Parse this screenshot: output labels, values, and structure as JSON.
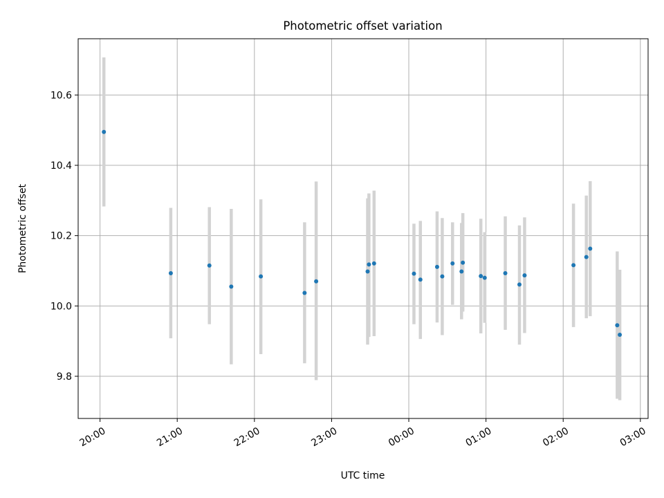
{
  "chart_data": {
    "type": "scatter",
    "title": "Photometric offset variation",
    "xlabel": "UTC time",
    "ylabel": "Photometric offset",
    "x_axis": {
      "kind": "time",
      "xlim": [
        "19:43",
        "03:06"
      ],
      "ticks": [
        "20:00",
        "21:00",
        "22:00",
        "23:00",
        "00:00",
        "01:00",
        "02:00",
        "03:00"
      ]
    },
    "ylim": [
      9.68,
      10.76
    ],
    "yticks": [
      9.8,
      10.0,
      10.2,
      10.4,
      10.6
    ],
    "grid": true,
    "colors": {
      "marker": "#1f77b4",
      "errorbar": "#d3d3d3",
      "grid": "#b0b0b0"
    },
    "points": [
      {
        "t": "20:03",
        "y": 10.495,
        "lo": 10.283,
        "hi": 10.707
      },
      {
        "t": "20:55",
        "y": 10.093,
        "lo": 9.908,
        "hi": 10.279
      },
      {
        "t": "21:25",
        "y": 10.115,
        "lo": 9.948,
        "hi": 10.281
      },
      {
        "t": "21:42",
        "y": 10.055,
        "lo": 9.834,
        "hi": 10.276
      },
      {
        "t": "22:05",
        "y": 10.084,
        "lo": 9.863,
        "hi": 10.303
      },
      {
        "t": "22:39",
        "y": 10.037,
        "lo": 9.837,
        "hi": 10.238
      },
      {
        "t": "22:48",
        "y": 10.07,
        "lo": 9.789,
        "hi": 10.354
      },
      {
        "t": "23:28",
        "y": 10.098,
        "lo": 9.89,
        "hi": 10.306
      },
      {
        "t": "23:29",
        "y": 10.118,
        "lo": 9.912,
        "hi": 10.32
      },
      {
        "t": "23:33",
        "y": 10.121,
        "lo": 9.914,
        "hi": 10.328
      },
      {
        "t": "00:04",
        "y": 10.092,
        "lo": 9.948,
        "hi": 10.234
      },
      {
        "t": "00:09",
        "y": 10.075,
        "lo": 9.906,
        "hi": 10.242
      },
      {
        "t": "00:22",
        "y": 10.111,
        "lo": 9.953,
        "hi": 10.269
      },
      {
        "t": "00:26",
        "y": 10.084,
        "lo": 9.917,
        "hi": 10.25
      },
      {
        "t": "00:34",
        "y": 10.121,
        "lo": 10.003,
        "hi": 10.238
      },
      {
        "t": "00:41",
        "y": 10.098,
        "lo": 9.962,
        "hi": 10.236
      },
      {
        "t": "00:42",
        "y": 10.123,
        "lo": 9.984,
        "hi": 10.264
      },
      {
        "t": "00:56",
        "y": 10.085,
        "lo": 9.922,
        "hi": 10.248
      },
      {
        "t": "00:59",
        "y": 10.08,
        "lo": 9.952,
        "hi": 10.21
      },
      {
        "t": "01:15",
        "y": 10.093,
        "lo": 9.932,
        "hi": 10.255
      },
      {
        "t": "01:26",
        "y": 10.061,
        "lo": 9.89,
        "hi": 10.229
      },
      {
        "t": "01:30",
        "y": 10.087,
        "lo": 9.923,
        "hi": 10.252
      },
      {
        "t": "02:08",
        "y": 10.116,
        "lo": 9.94,
        "hi": 10.291
      },
      {
        "t": "02:18",
        "y": 10.139,
        "lo": 9.965,
        "hi": 10.314
      },
      {
        "t": "02:21",
        "y": 10.163,
        "lo": 9.971,
        "hi": 10.355
      },
      {
        "t": "02:42",
        "y": 9.945,
        "lo": 9.736,
        "hi": 10.155
      },
      {
        "t": "02:44",
        "y": 9.918,
        "lo": 9.732,
        "hi": 10.103
      }
    ]
  }
}
